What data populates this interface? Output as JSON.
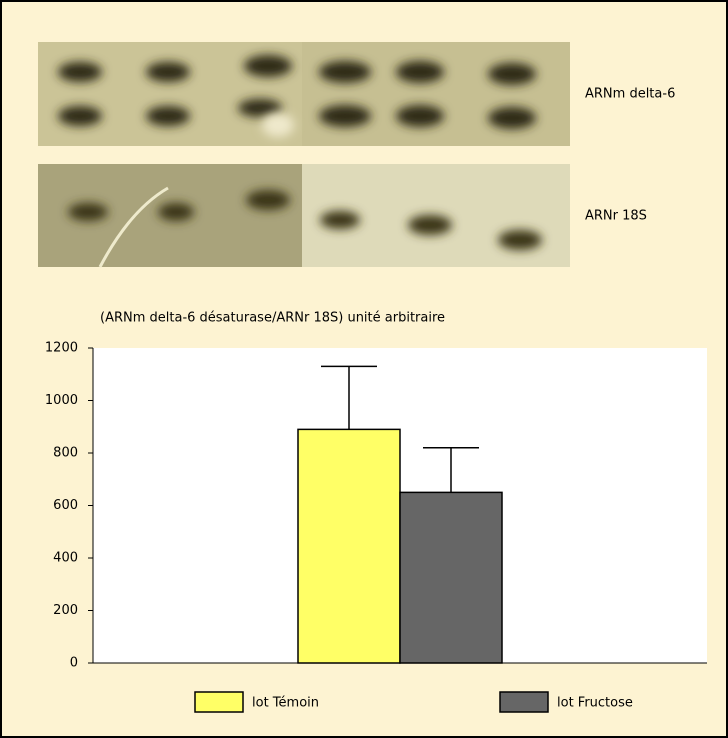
{
  "blots": {
    "labels": [
      "ARNm delta-6",
      "ARNr 18S"
    ]
  },
  "chart_data": {
    "type": "bar",
    "ylabel": "(ARNm delta-6 désaturase/ARNr 18S) unité arbitraire",
    "categories": [
      null
    ],
    "series": [
      {
        "name": "lot Témoin",
        "color": "#ffff66",
        "values": [
          890
        ],
        "errors": [
          240
        ]
      },
      {
        "name": "lot Fructose",
        "color": "#666666",
        "values": [
          650
        ],
        "errors": [
          170
        ]
      }
    ],
    "ylim": [
      0,
      1200
    ],
    "yticks": [
      0,
      200,
      400,
      600,
      800,
      1000,
      1200
    ]
  }
}
